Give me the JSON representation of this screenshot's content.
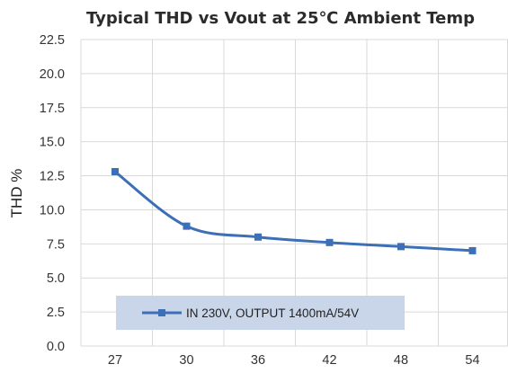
{
  "chart_data": {
    "type": "line",
    "title": "Typical THD vs Vout at 25℃ Ambient Temp",
    "xlabel": "",
    "ylabel": "THD %",
    "categories": [
      "27",
      "30",
      "36",
      "42",
      "48",
      "54"
    ],
    "ylim": [
      0,
      22.5
    ],
    "yticks": [
      "0.0",
      "2.5",
      "5.0",
      "7.5",
      "10.0",
      "12.5",
      "15.0",
      "17.5",
      "20.0",
      "22.5"
    ],
    "grid": true,
    "legend_position": "bottom-inside",
    "series": [
      {
        "name": "IN 230V, OUTPUT 1400mA/54V",
        "values": [
          12.8,
          8.8,
          8.0,
          7.6,
          7.3,
          7.0
        ],
        "color": "#3d6fb6",
        "marker": "square"
      }
    ],
    "colors": {
      "legend_bg": "#c9d6ea",
      "grid": "#d9d9d9"
    }
  }
}
